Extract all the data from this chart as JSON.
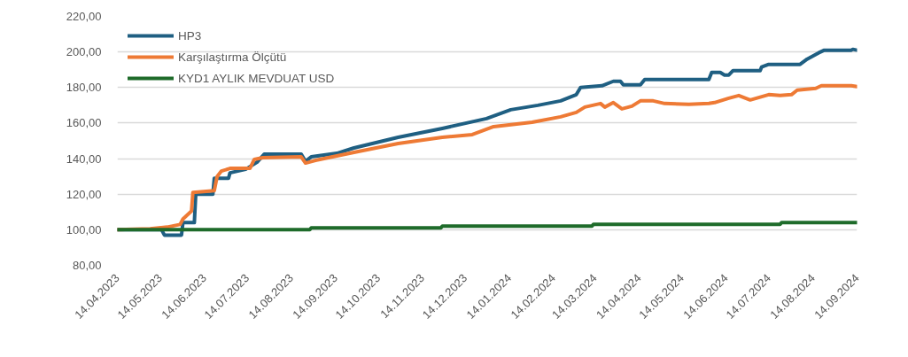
{
  "chart_data": {
    "type": "line",
    "grid": "y",
    "legend": "top left",
    "line_style": "solid",
    "marker": "none",
    "xlim": [
      "2023-04-14",
      "2024-09-14"
    ],
    "xticks": [
      {
        "value": "2023-04-14",
        "label": "14.04.2023"
      },
      {
        "value": "2023-05-14",
        "label": "14.05.2023"
      },
      {
        "value": "2023-06-14",
        "label": "14.06.2023"
      },
      {
        "value": "2023-07-14",
        "label": "14.07.2023"
      },
      {
        "value": "2023-08-14",
        "label": "14.08.2023"
      },
      {
        "value": "2023-09-14",
        "label": "14.09.2023"
      },
      {
        "value": "2023-10-14",
        "label": "14.10.2023"
      },
      {
        "value": "2023-11-14",
        "label": "14.11.2023"
      },
      {
        "value": "2023-12-14",
        "label": "14.12.2023"
      },
      {
        "value": "2024-01-14",
        "label": "14.01.2024"
      },
      {
        "value": "2024-02-14",
        "label": "14.02.2024"
      },
      {
        "value": "2024-03-14",
        "label": "14.03.2024"
      },
      {
        "value": "2024-04-14",
        "label": "14.04.2024"
      },
      {
        "value": "2024-05-14",
        "label": "14.05.2024"
      },
      {
        "value": "2024-06-14",
        "label": "14.06.2024"
      },
      {
        "value": "2024-07-14",
        "label": "14.07.2024"
      },
      {
        "value": "2024-08-14",
        "label": "14.08.2024"
      },
      {
        "value": "2024-09-14",
        "label": "14.09.2024"
      }
    ],
    "ylim": [
      80,
      220
    ],
    "yticks": [
      {
        "value": 80,
        "label": "80,00"
      },
      {
        "value": 100,
        "label": "100,00"
      },
      {
        "value": 120,
        "label": "120,00"
      },
      {
        "value": 140,
        "label": "140,00"
      },
      {
        "value": 160,
        "label": "160,00"
      },
      {
        "value": 180,
        "label": "180,00"
      },
      {
        "value": 200,
        "label": "200,00"
      },
      {
        "value": 220,
        "label": "220,00"
      }
    ],
    "series": [
      {
        "name": "HP3",
        "color": "#1f5f82",
        "x": [
          "2023-04-14",
          "2023-05-15",
          "2023-05-17",
          "2023-05-29",
          "2023-05-30",
          "2023-06-07",
          "2023-06-08",
          "2023-06-20",
          "2023-06-21",
          "2023-07-01",
          "2023-07-02",
          "2023-07-13",
          "2023-07-21",
          "2023-07-26",
          "2023-08-21",
          "2023-08-24",
          "2023-08-28",
          "2023-09-15",
          "2023-09-27",
          "2023-10-28",
          "2023-11-28",
          "2023-12-29",
          "2024-01-15",
          "2024-02-03",
          "2024-02-19",
          "2024-03-01",
          "2024-03-04",
          "2024-03-19",
          "2024-03-27",
          "2024-04-01",
          "2024-04-03",
          "2024-04-15",
          "2024-04-18",
          "2024-06-02",
          "2024-06-04",
          "2024-06-10",
          "2024-06-13",
          "2024-06-16",
          "2024-06-19",
          "2024-07-08",
          "2024-07-09",
          "2024-07-14",
          "2024-08-05",
          "2024-08-10",
          "2024-08-18",
          "2024-08-22",
          "2024-09-10",
          "2024-09-11",
          "2024-09-14"
        ],
        "values": [
          100,
          100,
          97,
          97,
          104,
          104,
          120,
          120,
          129,
          129,
          132,
          134,
          138,
          142.5,
          142.5,
          138.5,
          141,
          143,
          146,
          152,
          157,
          162.5,
          167.5,
          170,
          172.5,
          176,
          180,
          181,
          183.5,
          183.5,
          181.5,
          181.5,
          184.5,
          184.5,
          188.5,
          188.5,
          187,
          187,
          189.5,
          189.5,
          191.5,
          193,
          193,
          196,
          199.5,
          201,
          201,
          201.5,
          201
        ]
      },
      {
        "name": "Karşılaştırma Ölçütü",
        "color": "#ee7a35",
        "x": [
          "2023-04-14",
          "2023-05-07",
          "2023-05-19",
          "2023-05-28",
          "2023-05-30",
          "2023-06-05",
          "2023-06-06",
          "2023-06-21",
          "2023-06-23",
          "2023-06-26",
          "2023-07-02",
          "2023-07-16",
          "2023-07-19",
          "2023-07-25",
          "2023-08-21",
          "2023-08-24",
          "2023-08-31",
          "2023-09-27",
          "2023-10-28",
          "2023-11-28",
          "2023-12-19",
          "2024-01-03",
          "2024-01-30",
          "2024-02-19",
          "2024-03-01",
          "2024-03-07",
          "2024-03-18",
          "2024-03-21",
          "2024-03-27",
          "2024-04-02",
          "2024-04-09",
          "2024-04-15",
          "2024-04-24",
          "2024-05-02",
          "2024-05-19",
          "2024-06-02",
          "2024-06-06",
          "2024-06-16",
          "2024-06-23",
          "2024-07-01",
          "2024-07-14",
          "2024-07-22",
          "2024-07-30",
          "2024-08-03",
          "2024-08-16",
          "2024-08-20",
          "2024-09-10",
          "2024-09-14"
        ],
        "values": [
          100,
          100.5,
          101.5,
          103,
          106,
          110.5,
          121,
          122,
          130,
          133,
          134.5,
          134.5,
          139.5,
          140.5,
          141,
          137.5,
          139,
          143.5,
          148.5,
          152,
          153.5,
          158,
          160.5,
          163.5,
          166,
          169,
          171,
          169,
          171.5,
          168,
          169.5,
          172.5,
          172.5,
          171,
          170.5,
          171,
          171.5,
          174,
          175.5,
          173,
          176,
          175.5,
          176,
          178.5,
          179.5,
          181,
          181,
          180.5
        ]
      },
      {
        "name": "KYD1 AYLIK MEVDUAT USD",
        "color": "#1e6b2a",
        "x": [
          "2023-04-14",
          "2023-08-27",
          "2023-08-28",
          "2023-11-27",
          "2023-11-28",
          "2024-03-12",
          "2024-03-13",
          "2024-07-22",
          "2024-07-23",
          "2024-09-14"
        ],
        "values": [
          100,
          100,
          101,
          101,
          102,
          102,
          103,
          103,
          104,
          104
        ]
      }
    ]
  }
}
